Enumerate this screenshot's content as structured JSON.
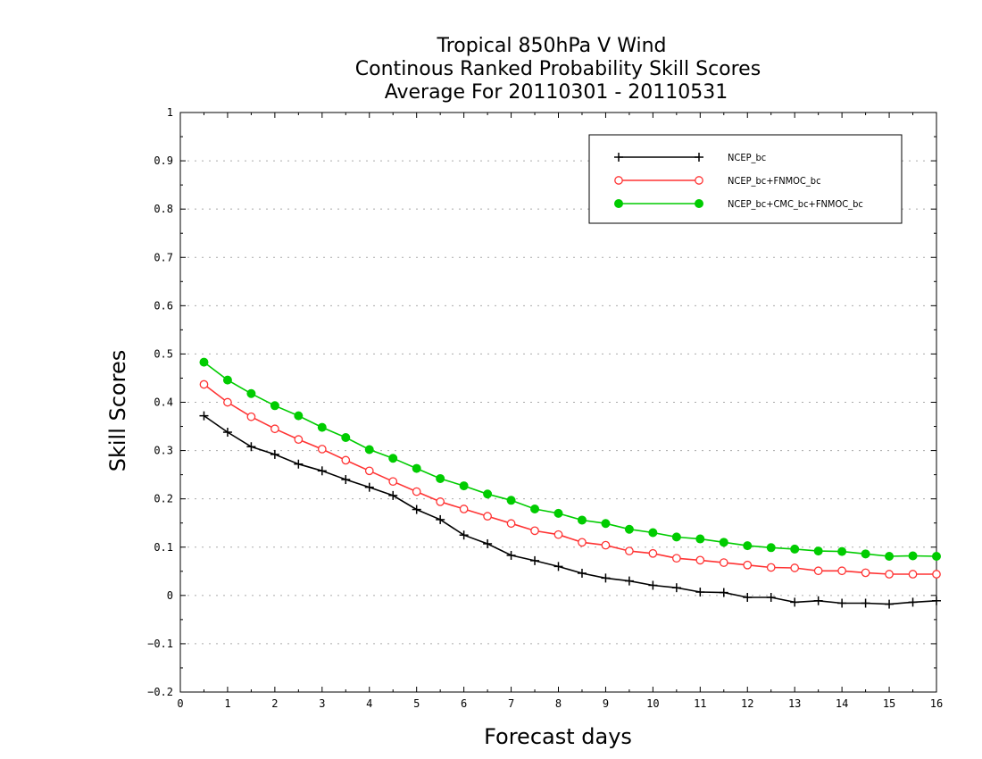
{
  "chart_data": {
    "type": "line",
    "title": [
      "Tropical 850hPa V Wind",
      "Continous Ranked Probability Skill Scores",
      "Average For 20110301 - 20110531"
    ],
    "xlabel": "Forecast days",
    "ylabel": "Skill Scores",
    "xlim": [
      0,
      16
    ],
    "ylim": [
      -0.2,
      1
    ],
    "x_ticks": [
      "0",
      "1",
      "2",
      "3",
      "4",
      "5",
      "6",
      "7",
      "8",
      "9",
      "10",
      "11",
      "12",
      "13",
      "14",
      "15",
      "16"
    ],
    "y_ticks": [
      "-0.2",
      "-0.1",
      "0",
      "0.1",
      "0.2",
      "0.3",
      "0.4",
      "0.5",
      "0.6",
      "0.7",
      "0.8",
      "0.9",
      "1"
    ],
    "grid": true,
    "legend_position": "top-right",
    "x": [
      0.5,
      1,
      1.5,
      2,
      2.5,
      3,
      3.5,
      4,
      4.5,
      5,
      5.5,
      6,
      6.5,
      7,
      7.5,
      8,
      8.5,
      9,
      9.5,
      10,
      10.5,
      11,
      11.5,
      12,
      12.5,
      13,
      13.5,
      14,
      14.5,
      15,
      15.5,
      16
    ],
    "series": [
      {
        "name": "NCEP_bc",
        "color": "#000000",
        "marker": "plus",
        "values": [
          0.372,
          0.338,
          0.308,
          0.292,
          0.272,
          0.258,
          0.24,
          0.224,
          0.207,
          0.178,
          0.157,
          0.125,
          0.107,
          0.083,
          0.072,
          0.06,
          0.046,
          0.036,
          0.03,
          0.021,
          0.016,
          0.007,
          0.006,
          -0.004,
          -0.004,
          -0.014,
          -0.011,
          -0.016,
          -0.016,
          -0.018,
          -0.014,
          -0.011
        ]
      },
      {
        "name": "NCEP_bc+FNMOC_bc",
        "color": "#ff3333",
        "marker": "open-circle",
        "values": [
          0.437,
          0.4,
          0.37,
          0.345,
          0.323,
          0.303,
          0.28,
          0.258,
          0.236,
          0.215,
          0.194,
          0.179,
          0.164,
          0.149,
          0.134,
          0.126,
          0.11,
          0.104,
          0.092,
          0.087,
          0.077,
          0.073,
          0.068,
          0.063,
          0.058,
          0.057,
          0.051,
          0.051,
          0.047,
          0.044,
          0.044,
          0.044
        ]
      },
      {
        "name": "NCEP_bc+CMC_bc+FNMOC_bc",
        "color": "#00cc00",
        "marker": "filled-circle",
        "values": [
          0.483,
          0.446,
          0.418,
          0.393,
          0.372,
          0.348,
          0.327,
          0.302,
          0.284,
          0.263,
          0.242,
          0.227,
          0.21,
          0.197,
          0.179,
          0.17,
          0.156,
          0.149,
          0.137,
          0.13,
          0.121,
          0.117,
          0.11,
          0.103,
          0.099,
          0.096,
          0.092,
          0.091,
          0.086,
          0.081,
          0.082,
          0.081
        ]
      }
    ]
  }
}
